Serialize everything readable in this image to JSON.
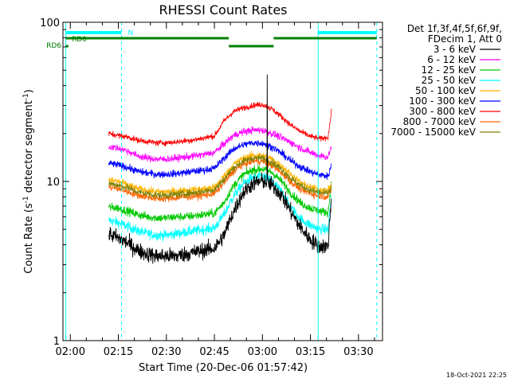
{
  "chart_data": {
    "type": "line",
    "title": "RHESSI Count Rates",
    "xlabel": "Start Time (20-Dec-06 01:57:42)",
    "ylabel_parts": [
      "Count Rate (s",
      "-1",
      " detector segment",
      "-1",
      ")"
    ],
    "yscale": "log",
    "ylim": [
      1,
      100
    ],
    "xlim_minutes": [
      -2.3,
      97.5
    ],
    "x_ticks": [
      {
        "label": "02:00",
        "t": 0
      },
      {
        "label": "02:15",
        "t": 15
      },
      {
        "label": "02:30",
        "t": 30
      },
      {
        "label": "02:45",
        "t": 45
      },
      {
        "label": "03:00",
        "t": 60
      },
      {
        "label": "03:15",
        "t": 75
      },
      {
        "label": "03:30",
        "t": 90
      }
    ],
    "y_ticks": [
      {
        "label": "1",
        "value": 1
      },
      {
        "label": "10",
        "value": 10
      },
      {
        "label": "100",
        "value": 100
      }
    ],
    "legend_header": [
      "Det 1f,3f,4f,5f,6f,9f,",
      "FDecim 1, Att 0"
    ],
    "legend_position": "right",
    "time_profile_minutes": [
      12,
      15,
      18,
      21,
      24,
      27,
      30,
      33,
      36,
      39,
      42,
      45,
      48,
      51,
      54,
      57,
      60,
      63,
      66,
      69,
      72,
      75,
      78,
      80.5,
      81.5
    ],
    "series": [
      {
        "name": "3 - 6 keV",
        "color": "#000000",
        "noise": 0.11,
        "values": [
          4.7,
          4.4,
          4.1,
          3.7,
          3.5,
          3.4,
          3.4,
          3.4,
          3.5,
          3.6,
          3.7,
          3.8,
          4.6,
          6.5,
          8.5,
          9.7,
          10.1,
          9.5,
          8.2,
          6.4,
          5.1,
          4.3,
          3.9,
          3.9,
          8.0
        ]
      },
      {
        "name": "6 - 12 keV",
        "color": "#ff00ff",
        "noise": 0.05,
        "values": [
          16.5,
          16.2,
          15.5,
          14.5,
          14.0,
          13.8,
          13.8,
          14.0,
          14.2,
          14.5,
          14.8,
          15.2,
          17.2,
          19.5,
          20.5,
          21.0,
          21.0,
          20.0,
          18.8,
          17.5,
          16.2,
          15.2,
          14.5,
          14.2,
          16.5
        ]
      },
      {
        "name": "12 - 25 keV",
        "color": "#00c800",
        "noise": 0.06,
        "values": [
          6.9,
          6.8,
          6.5,
          6.2,
          6.0,
          5.9,
          5.9,
          6.0,
          6.0,
          6.1,
          6.2,
          6.3,
          7.4,
          9.4,
          11.0,
          11.8,
          12.0,
          11.4,
          10.0,
          8.4,
          7.3,
          6.8,
          6.5,
          6.4,
          9.5
        ]
      },
      {
        "name": "25 - 50 keV",
        "color": "#00ffff",
        "noise": 0.07,
        "values": [
          5.7,
          5.5,
          5.2,
          4.9,
          4.7,
          4.6,
          4.6,
          4.7,
          4.8,
          4.9,
          5.0,
          5.1,
          6.2,
          8.1,
          9.7,
          10.6,
          10.8,
          10.1,
          8.6,
          6.8,
          5.8,
          5.3,
          5.0,
          5.0,
          8.0
        ]
      },
      {
        "name": "50 - 100 keV",
        "color": "#ffb400",
        "noise": 0.05,
        "values": [
          10.2,
          10.0,
          9.5,
          9.0,
          8.8,
          8.6,
          8.6,
          8.7,
          8.8,
          8.9,
          9.0,
          9.2,
          10.8,
          12.8,
          14.0,
          14.6,
          14.6,
          13.8,
          12.5,
          11.0,
          9.8,
          9.2,
          8.9,
          8.8,
          9.5
        ]
      },
      {
        "name": "100 - 300 keV",
        "color": "#0000ff",
        "noise": 0.05,
        "values": [
          13.0,
          12.7,
          12.2,
          11.6,
          11.3,
          11.1,
          11.1,
          11.2,
          11.4,
          11.6,
          11.8,
          12.1,
          14.0,
          16.0,
          17.0,
          17.5,
          17.4,
          16.5,
          15.0,
          13.4,
          12.3,
          11.5,
          11.0,
          10.8,
          12.5
        ]
      },
      {
        "name": "300 - 800 keV",
        "color": "#ff0000",
        "noise": 0.04,
        "values": [
          20.0,
          19.5,
          19.0,
          18.2,
          17.8,
          17.5,
          17.5,
          17.7,
          18.0,
          18.3,
          18.8,
          19.3,
          24.0,
          27.5,
          29.0,
          30.0,
          30.5,
          28.5,
          25.5,
          22.5,
          20.5,
          19.2,
          18.5,
          19.0,
          27.0
        ]
      },
      {
        "name": "800 - 7000 keV",
        "color": "#ff6400",
        "noise": 0.05,
        "values": [
          9.2,
          9.0,
          8.6,
          8.2,
          8.0,
          7.8,
          7.8,
          7.9,
          8.0,
          8.1,
          8.2,
          8.4,
          9.8,
          11.6,
          12.8,
          13.4,
          13.4,
          12.6,
          11.3,
          9.9,
          8.9,
          8.4,
          8.1,
          8.0,
          9.0
        ]
      },
      {
        "name": "7000 - 15000 keV",
        "color": "#808000",
        "noise": 0.05,
        "values": [
          9.7,
          9.5,
          9.1,
          8.6,
          8.4,
          8.2,
          8.2,
          8.3,
          8.4,
          8.5,
          8.7,
          8.9,
          10.3,
          12.2,
          13.4,
          14.0,
          14.0,
          13.2,
          11.9,
          10.4,
          9.4,
          8.8,
          8.5,
          8.4,
          9.2
        ]
      }
    ],
    "spike_minutes": 61.5,
    "spike_value": 47,
    "vertical_markers": [
      {
        "t": -1.4,
        "style": "solid",
        "color": "#00ffff"
      },
      {
        "t": 16.0,
        "style": "dashed",
        "color": "#00ffff"
      },
      {
        "t": 77.4,
        "style": "solid",
        "color": "#00ffff"
      },
      {
        "t": 95.7,
        "style": "dashed",
        "color": "#00ffff"
      }
    ],
    "overlays": [
      {
        "label": "N",
        "color": "#00ffff",
        "segments": [
          [
            -1.4,
            16.0
          ],
          [
            77.4,
            95.7
          ]
        ]
      },
      {
        "label": "RD0",
        "color": "#008000",
        "segments": [
          [
            -1.4,
            49.5
          ],
          [
            63.5,
            95.7
          ]
        ]
      },
      {
        "label": "RD6",
        "color": "#008000",
        "segments": [
          [
            -1.4,
            -0.6
          ],
          [
            49.5,
            63.5
          ]
        ]
      }
    ],
    "footer_timestamp": "18-Oct-2021 22:25"
  }
}
